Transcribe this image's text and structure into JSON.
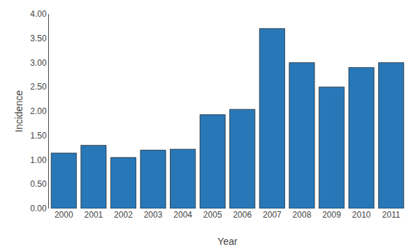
{
  "chart_data": {
    "type": "bar",
    "categories": [
      "2000",
      "2001",
      "2002",
      "2003",
      "2004",
      "2005",
      "2006",
      "2007",
      "2008",
      "2009",
      "2010",
      "2011"
    ],
    "values": [
      1.14,
      1.3,
      1.05,
      1.2,
      1.22,
      1.93,
      2.04,
      3.7,
      3.0,
      2.5,
      2.9,
      3.0
    ],
    "color": "#2878b8",
    "xlabel": "Year",
    "ylabel": "Incidence",
    "ylim": [
      0.0,
      4.0
    ],
    "yticks": [
      {
        "value": 0.0,
        "label": "0.00"
      },
      {
        "value": 0.5,
        "label": "0.50"
      },
      {
        "value": 1.0,
        "label": "1.00"
      },
      {
        "value": 1.5,
        "label": "1.50"
      },
      {
        "value": 2.0,
        "label": "2.00"
      },
      {
        "value": 2.5,
        "label": "2.50"
      },
      {
        "value": 3.0,
        "label": "3.00"
      },
      {
        "value": 3.5,
        "label": "3.50"
      },
      {
        "value": 4.0,
        "label": "4.00"
      }
    ],
    "grid": false
  }
}
